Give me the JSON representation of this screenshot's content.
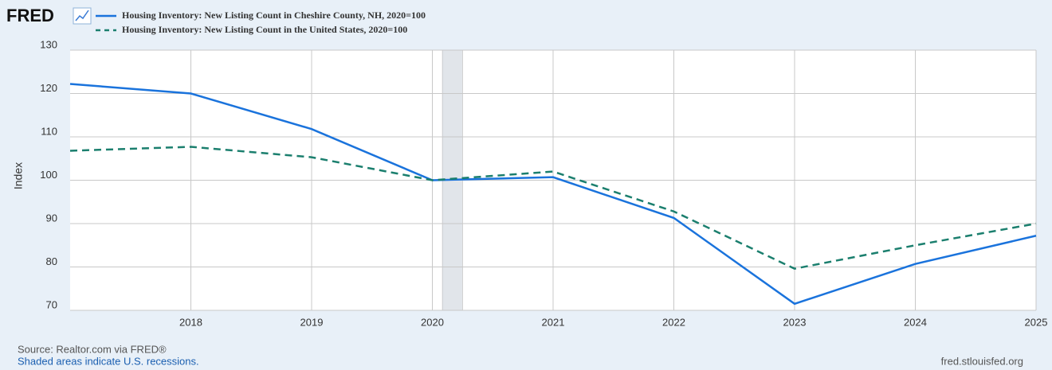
{
  "logo": "FRED",
  "chart_data": {
    "type": "line",
    "y_label": "Index",
    "x": [
      2017,
      2018,
      2019,
      2020,
      2021,
      2022,
      2023,
      2024,
      2025
    ],
    "series": [
      {
        "name": "Housing Inventory: New Listing Count in Cheshire County, NH, 2020=100",
        "color": "#1a73dc",
        "line_style": "solid",
        "values": [
          122.2,
          120,
          111.8,
          100,
          100.7,
          91.3,
          71.5,
          80.7,
          87.2
        ]
      },
      {
        "name": "Housing Inventory: New Listing Count in the United States, 2020=100",
        "color": "#1b7f6e",
        "line_style": "dashed",
        "values": [
          106.8,
          107.7,
          105.3,
          100,
          102,
          92.8,
          79.6,
          85,
          90
        ]
      }
    ],
    "xlim": [
      2017,
      2025
    ],
    "xticks": [
      2018,
      2019,
      2020,
      2021,
      2022,
      2023,
      2024,
      2025
    ],
    "ylim": [
      70,
      130
    ],
    "yticks": [
      70,
      80,
      90,
      100,
      110,
      120,
      130
    ],
    "grid": true,
    "recessions": [
      [
        2020.083,
        2020.25
      ]
    ],
    "source": "Source: Realtor.com via FRED®",
    "note": "Shaded areas indicate U.S. recessions.",
    "site": "fred.stlouisfed.org"
  }
}
